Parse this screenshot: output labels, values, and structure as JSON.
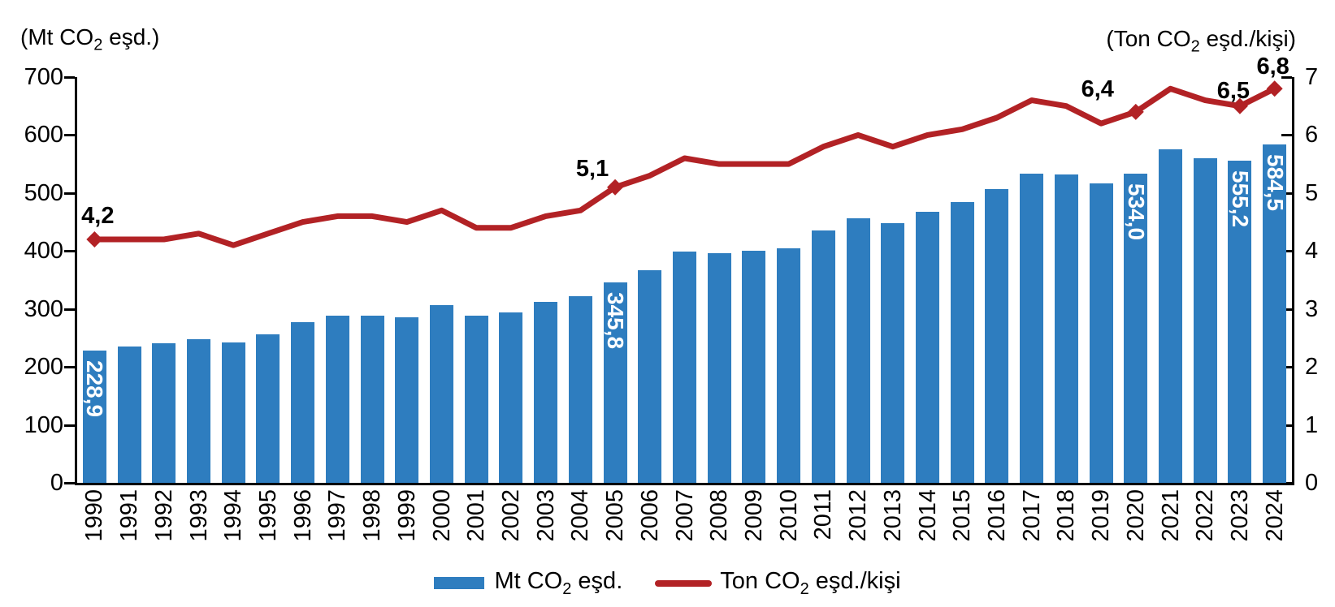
{
  "header": {
    "left_axis_unit": {
      "prefix": "(Mt CO",
      "sub": "2",
      "suffix": " eşd.)"
    },
    "right_axis_unit": {
      "prefix": "(Ton CO",
      "sub": "2",
      "suffix": " eşd./kişi)"
    }
  },
  "legend": {
    "bar_series": {
      "prefix": "Mt CO",
      "sub": "2",
      "suffix": " eşd."
    },
    "line_series": {
      "prefix": "Ton CO",
      "sub": "2",
      "suffix": " eşd./kişi"
    }
  },
  "colors": {
    "bar": "#2E7DBF",
    "line": "#B22225",
    "axis": "#000000",
    "bar_label_text": "#FFFFFF",
    "line_label_text": "#000000"
  },
  "chart_data": {
    "type": "bar",
    "subtype": "bar+line dual-axis combo",
    "grid": false,
    "legend_position": "bottom",
    "categories": [
      1990,
      1991,
      1992,
      1993,
      1994,
      1995,
      1996,
      1997,
      1998,
      1999,
      2000,
      2001,
      2002,
      2003,
      2004,
      2005,
      2006,
      2007,
      2008,
      2009,
      2010,
      2011,
      2012,
      2013,
      2014,
      2015,
      2016,
      2017,
      2018,
      2019,
      2020,
      2021,
      2022,
      2023,
      2024
    ],
    "series": [
      {
        "name": "Mt CO2 eşd.",
        "chart_type": "bar",
        "axis": "left",
        "color": "#2E7DBF",
        "values": [
          228.9,
          235.4,
          241.3,
          248.3,
          242.4,
          256.5,
          277.0,
          289.1,
          288.3,
          286.3,
          307.1,
          288.0,
          294.4,
          312.1,
          321.9,
          345.8,
          366.2,
          399.2,
          395.7,
          401.0,
          405.3,
          435.5,
          455.9,
          448.3,
          467.1,
          483.8,
          507.4,
          533.6,
          531.7,
          516.6,
          534.0,
          574.8,
          560.0,
          555.2,
          584.5
        ],
        "data_labels": [
          {
            "year": 1990,
            "text": "228,9"
          },
          {
            "year": 2005,
            "text": "345,8"
          },
          {
            "year": 2020,
            "text": "534,0"
          },
          {
            "year": 2023,
            "text": "555,2"
          },
          {
            "year": 2024,
            "text": "584,5"
          }
        ]
      },
      {
        "name": "Ton CO2 eşd./kişi",
        "chart_type": "line",
        "axis": "right",
        "color": "#B22225",
        "values": [
          4.2,
          4.2,
          4.2,
          4.3,
          4.1,
          4.3,
          4.5,
          4.6,
          4.6,
          4.5,
          4.7,
          4.4,
          4.4,
          4.6,
          4.7,
          5.1,
          5.3,
          5.6,
          5.5,
          5.5,
          5.5,
          5.8,
          6.0,
          5.8,
          6.0,
          6.1,
          6.3,
          6.6,
          6.5,
          6.2,
          6.4,
          6.8,
          6.6,
          6.5,
          6.8
        ],
        "marker_years": [
          1990,
          2005,
          2020,
          2023,
          2024
        ],
        "data_labels": [
          {
            "year": 1990,
            "text": "4,2",
            "dx": 4,
            "dy": -14
          },
          {
            "year": 2005,
            "text": "5,1",
            "dx": -28,
            "dy": -8
          },
          {
            "year": 2020,
            "text": "6,4",
            "dx": -47,
            "dy": -13
          },
          {
            "year": 2023,
            "text": "6,5",
            "dx": -8,
            "dy": -4
          },
          {
            "year": 2024,
            "text": "6,8",
            "dx": -2,
            "dy": -12
          }
        ]
      }
    ],
    "left_axis": {
      "title": "(Mt CO2 eşd.)",
      "min": 0,
      "max": 700,
      "tick_labels": [
        "0",
        "100",
        "200",
        "300",
        "400",
        "500",
        "600",
        "700"
      ]
    },
    "right_axis": {
      "title": "(Ton CO2 eşd./kişi)",
      "min": 0,
      "max": 7,
      "tick_labels": [
        "0",
        "1",
        "2",
        "3",
        "4",
        "5",
        "6",
        "7"
      ]
    }
  }
}
